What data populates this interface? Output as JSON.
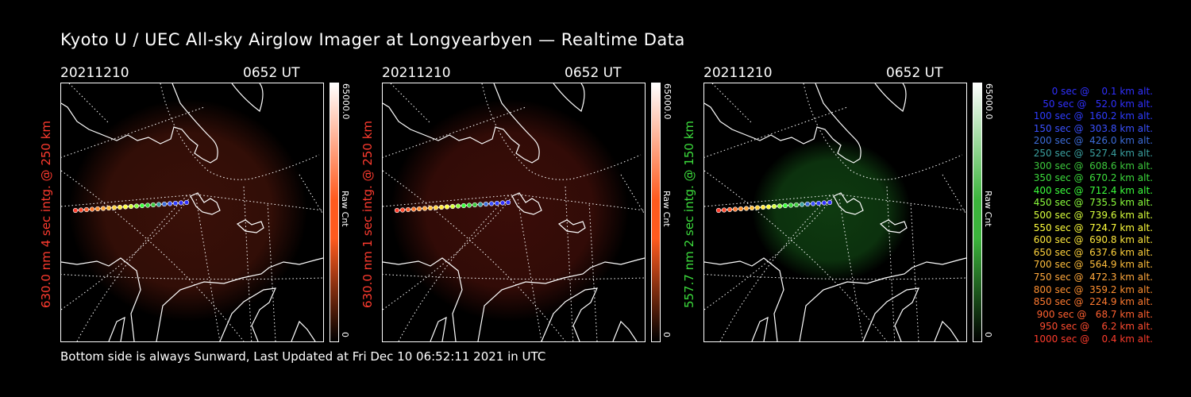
{
  "title": "Kyoto U / UEC All-sky Airglow Imager at Longyearbyen — Realtime Data",
  "footer": "Bottom side is always Sunward, Last Updated at Fri Dec 10 06:52:11 2021 in UTC",
  "panels": [
    {
      "date": "20211210",
      "time": "0652 UT",
      "ylabel": "630.0 nm 4 sec intg. @ 250 km",
      "ylabel_color": "#ff3b2f",
      "cbar_max": "65000.0",
      "cbar_min": "0",
      "cbar_unit": "Raw Cnt",
      "cbar_color": "#ff5a1e",
      "glow": "#3a1008"
    },
    {
      "date": "20211210",
      "time": "0652 UT",
      "ylabel": "630.0 nm 1 sec intg. @ 250 km",
      "ylabel_color": "#ff3b2f",
      "cbar_max": "65000.0",
      "cbar_min": "0",
      "cbar_unit": "Raw Cnt",
      "cbar_color": "#ff5a1e",
      "glow": "#3a0d08"
    },
    {
      "date": "20211210",
      "time": "0652 UT",
      "ylabel": "557.7 nm 2 sec intg. @ 150 km",
      "ylabel_color": "#3cdc3c",
      "cbar_max": "65000.0",
      "cbar_min": "0",
      "cbar_unit": "Raw Cnt",
      "cbar_color": "#3cb43c",
      "glow": "#0e3a10"
    }
  ],
  "legend": [
    {
      "text": "   0 sec @    0.1 km alt.",
      "color": "#3030ff"
    },
    {
      "text": "  50 sec @   52.0 km alt.",
      "color": "#3030ff"
    },
    {
      "text": " 100 sec @  160.2 km alt.",
      "color": "#2e3cff"
    },
    {
      "text": " 150 sec @  303.8 km alt.",
      "color": "#3a50ff"
    },
    {
      "text": " 200 sec @  426.0 km alt.",
      "color": "#3c6cd8"
    },
    {
      "text": " 250 sec @  527.4 km alt.",
      "color": "#3aa0a0"
    },
    {
      "text": " 300 sec @  608.6 km alt.",
      "color": "#3cc83c"
    },
    {
      "text": " 350 sec @  670.2 km alt.",
      "color": "#3cdc3c"
    },
    {
      "text": " 400 sec @  712.4 km alt.",
      "color": "#3cff3c"
    },
    {
      "text": " 450 sec @  735.5 km alt.",
      "color": "#8cff3c"
    },
    {
      "text": " 500 sec @  739.6 km alt.",
      "color": "#d8ff3c"
    },
    {
      "text": " 550 sec @  724.7 km alt.",
      "color": "#ffff3c"
    },
    {
      "text": " 600 sec @  690.8 km alt.",
      "color": "#ffe83c"
    },
    {
      "text": " 650 sec @  637.6 km alt.",
      "color": "#ffd23c"
    },
    {
      "text": " 700 sec @  564.9 km alt.",
      "color": "#ffbe3c"
    },
    {
      "text": " 750 sec @  472.3 km alt.",
      "color": "#ffa83c"
    },
    {
      "text": " 800 sec @  359.2 km alt.",
      "color": "#ff9030"
    },
    {
      "text": " 850 sec @  224.9 km alt.",
      "color": "#ff7a30"
    },
    {
      "text": " 900 sec @   68.7 km alt.",
      "color": "#ff6030"
    },
    {
      "text": " 950 sec @    6.2 km alt.",
      "color": "#ff4c30"
    },
    {
      "text": "1000 sec @    0.4 km alt.",
      "color": "#ff3c2c"
    }
  ]
}
